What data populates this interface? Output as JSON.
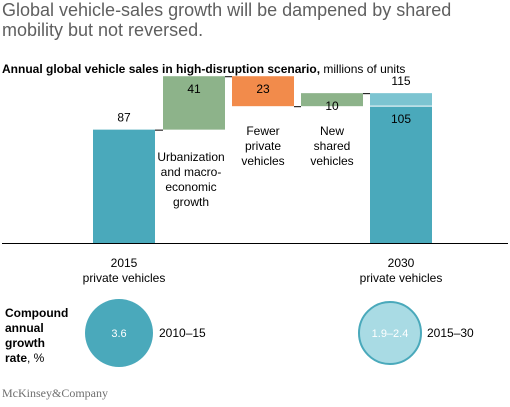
{
  "headline": "Global vehicle-sales growth will be dampened by shared mobility but not reversed.",
  "chart_title": {
    "bold": "Annual global vehicle sales in high-disruption scenario,",
    "unit": " millions of units"
  },
  "chart_data": {
    "type": "bar",
    "subtype": "waterfall",
    "categories": [
      "2015 private vehicles",
      "Urbanization and macro-economic growth",
      "Fewer private vehicles",
      "New shared vehicles",
      "2030 private vehicles"
    ],
    "steps": [
      {
        "id": "start",
        "kind": "total",
        "value": 87,
        "label": "87",
        "category_lines": [
          "2015",
          "private vehicles"
        ],
        "color": "#4aa9bb"
      },
      {
        "id": "urbanization",
        "kind": "increase",
        "value": 41,
        "label": "41",
        "category_lines": [
          "Urbanization",
          "and macro-",
          "economic",
          "growth"
        ],
        "color": "#8db38a"
      },
      {
        "id": "fewer_private",
        "kind": "decrease",
        "value": -23,
        "label": "23",
        "category_lines": [
          "Fewer",
          "private",
          "vehicles"
        ],
        "color": "#f28b4b"
      },
      {
        "id": "new_shared",
        "kind": "increase",
        "value": 10,
        "label": "10",
        "category_lines": [
          "New",
          "shared",
          "vehicles"
        ],
        "color": "#8db38a"
      },
      {
        "id": "end",
        "kind": "total",
        "value": 115,
        "label": "115",
        "segments": [
          {
            "value": 105,
            "label": "105",
            "color": "#4aa9bb"
          },
          {
            "value": 10,
            "label": "",
            "color": "#7cc4d1"
          }
        ],
        "category_lines": [
          "2030",
          "private vehicles"
        ]
      }
    ],
    "ylim": [
      0,
      130
    ],
    "grid": false,
    "xlabel": "",
    "ylabel": ""
  },
  "cagr": {
    "label_lines": [
      "Compound",
      "annual",
      "growth"
    ],
    "label_last": "rate",
    "unit": ", %",
    "items": [
      {
        "value": "3.6",
        "period": "2010–15",
        "fill": "#4aa9bb",
        "text_color": "#ffffff"
      },
      {
        "value": "1.9–2.4",
        "period": "2015–30",
        "fill": "#a9dbe4",
        "text_color": "#ffffff"
      }
    ]
  },
  "footer": "McKinsey&Company"
}
